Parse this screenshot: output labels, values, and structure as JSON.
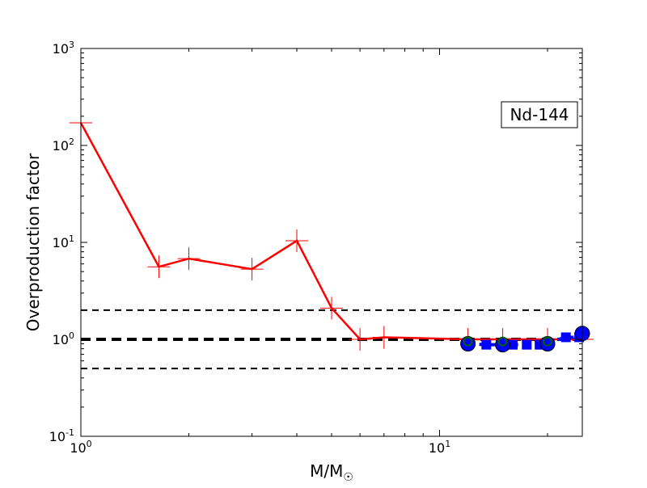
{
  "chart_data": {
    "type": "line",
    "title": "",
    "xlabel": "M/M",
    "xlabel_subscript": "☉",
    "ylabel": "Overproduction factor",
    "xscale": "log",
    "yscale": "log",
    "xlim": [
      1,
      25
    ],
    "ylim": [
      0.1,
      1000
    ],
    "xticks": [
      {
        "value": 1,
        "base": "10",
        "exp": "0"
      },
      {
        "value": 10,
        "base": "10",
        "exp": "1"
      }
    ],
    "yticks": [
      {
        "value": 0.1,
        "base": "10",
        "exp": "-1"
      },
      {
        "value": 1,
        "base": "10",
        "exp": "0"
      },
      {
        "value": 10,
        "base": "10",
        "exp": "1"
      },
      {
        "value": 100,
        "base": "10",
        "exp": "2"
      },
      {
        "value": 1000,
        "base": "10",
        "exp": "3"
      }
    ],
    "annotation": "Nd-144",
    "hlines": [
      {
        "y": 2,
        "style": "dashed",
        "color": "#000000",
        "width": "thin"
      },
      {
        "y": 1,
        "style": "dashed",
        "color": "#000000",
        "width": "thick"
      },
      {
        "y": 0.5,
        "style": "dashed",
        "color": "#000000",
        "width": "thin"
      }
    ],
    "series": [
      {
        "color": "#ff0000",
        "marker": "plus",
        "line": "solid",
        "x": [
          1,
          1.65,
          2,
          3,
          4,
          5,
          6,
          7,
          12,
          15,
          20,
          25
        ],
        "y": [
          171,
          5.6,
          6.8,
          5.3,
          10.4,
          2.1,
          1.0,
          1.05,
          1.0,
          1.0,
          1.0,
          1.0
        ]
      },
      {
        "color": "#0000ff",
        "marker": "square",
        "line": "dashed",
        "x": [
          12,
          13.5,
          15,
          16,
          17.5,
          19,
          22.5,
          24.5
        ],
        "y": [
          0.9,
          0.88,
          0.88,
          0.88,
          0.88,
          0.88,
          1.05,
          1.05
        ]
      },
      {
        "color": "#0000ff",
        "marker": "circle",
        "line": "none",
        "x": [
          12,
          15,
          20,
          25
        ],
        "y": [
          0.9,
          0.88,
          0.9,
          1.15
        ]
      },
      {
        "color": "#006400",
        "marker": "circle-small",
        "line": "none",
        "x": [
          12,
          15,
          20
        ],
        "y": [
          0.95,
          0.95,
          0.95
        ]
      }
    ],
    "grid": false,
    "legend": "none"
  }
}
